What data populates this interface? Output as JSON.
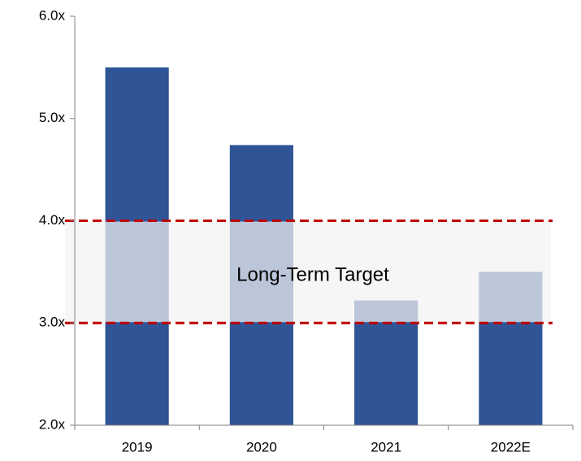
{
  "chart_data": {
    "type": "bar",
    "categories": [
      "2019",
      "2020",
      "2021",
      "2022E"
    ],
    "values": [
      5.5,
      4.74,
      3.22,
      3.5
    ],
    "color": "#2f5597",
    "ylim": [
      2,
      6
    ],
    "yticks": [
      {
        "value": 2,
        "label": "2.0x"
      },
      {
        "value": 3,
        "label": "3.0x"
      },
      {
        "value": 4,
        "label": "4.0x"
      },
      {
        "value": 5,
        "label": "5.0x"
      },
      {
        "value": 6,
        "label": "6.0x"
      }
    ],
    "target": {
      "label": "Long-Term Target",
      "range": [
        3,
        4
      ],
      "color": "#c00000"
    }
  }
}
